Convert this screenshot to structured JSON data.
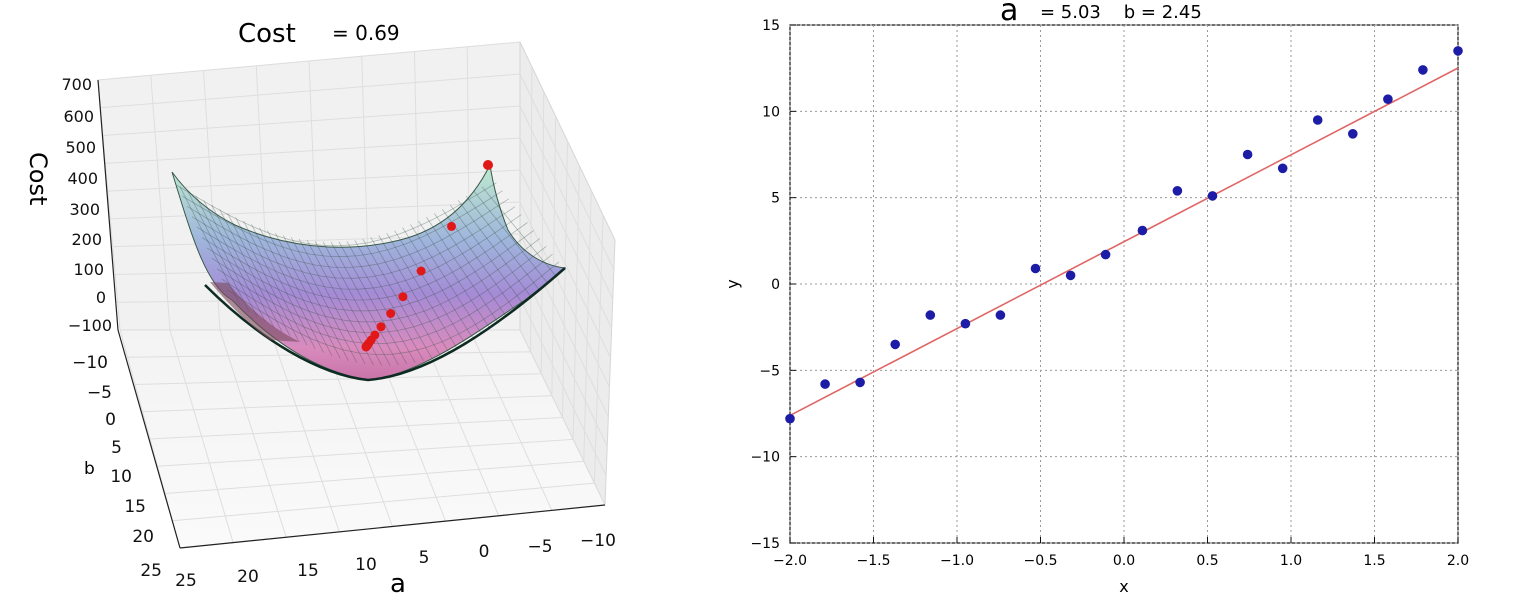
{
  "chart_data": [
    {
      "type": "surface",
      "title_symbol": "Cost",
      "title_value": "= 0.69",
      "xlabel": "a",
      "ylabel": "b",
      "zlabel": "Cost",
      "a_ticks": [
        "25",
        "20",
        "15",
        "10",
        "5",
        "0",
        "−5",
        "−10"
      ],
      "b_ticks": [
        "−10",
        "−5",
        "0",
        "5",
        "10",
        "15",
        "20",
        "25"
      ],
      "z_ticks": [
        "700",
        "600",
        "500",
        "400",
        "300",
        "200",
        "100",
        "0",
        "−100"
      ],
      "colors": {
        "surface_top": "#b9e6c9",
        "surface_mid": "#9a8fd6",
        "surface_bottom": "#d77fb0",
        "path": "#e01818"
      },
      "descent_path": [
        {
          "a": -5.0,
          "b": 5.0
        },
        {
          "a": -2.0,
          "b": 3.5
        },
        {
          "a": 0.5,
          "b": 2.8
        },
        {
          "a": 2.0,
          "b": 2.5
        },
        {
          "a": 3.0,
          "b": 2.4
        },
        {
          "a": 3.8,
          "b": 2.4
        },
        {
          "a": 4.3,
          "b": 2.4
        },
        {
          "a": 4.6,
          "b": 2.45
        },
        {
          "a": 4.8,
          "b": 2.45
        },
        {
          "a": 4.9,
          "b": 2.45
        },
        {
          "a": 4.95,
          "b": 2.45
        },
        {
          "a": 5.0,
          "b": 2.45
        },
        {
          "a": 5.03,
          "b": 2.45
        }
      ]
    },
    {
      "type": "scatter",
      "title_a_symbol": "a",
      "title_rest": "= 5.03    b = 2.45",
      "xlabel": "x",
      "ylabel": "y",
      "xlim": [
        -2.0,
        2.0
      ],
      "ylim": [
        -15,
        15
      ],
      "x_ticks": [
        "−2.0",
        "−1.5",
        "−1.0",
        "−0.5",
        "0.0",
        "0.5",
        "1.0",
        "1.5",
        "2.0"
      ],
      "y_ticks": [
        "15",
        "10",
        "5",
        "0",
        "−5",
        "−10",
        "−15"
      ],
      "grid": true,
      "points_color": "#1c1ca6",
      "line_color": "#e06666",
      "points": {
        "x": [
          -2.0,
          -1.79,
          -1.58,
          -1.37,
          -1.16,
          -0.95,
          -0.74,
          -0.53,
          -0.32,
          -0.11,
          0.11,
          0.32,
          0.53,
          0.74,
          0.95,
          1.16,
          1.37,
          1.58,
          1.79,
          2.0
        ],
        "y": [
          -7.8,
          -5.8,
          -5.7,
          -3.5,
          -1.8,
          -2.3,
          -1.8,
          0.9,
          0.5,
          1.7,
          3.1,
          5.4,
          5.1,
          7.5,
          6.7,
          9.5,
          8.7,
          10.7,
          12.4,
          13.5
        ]
      },
      "fit_line": {
        "slope": 5.03,
        "intercept": 2.45
      }
    }
  ]
}
